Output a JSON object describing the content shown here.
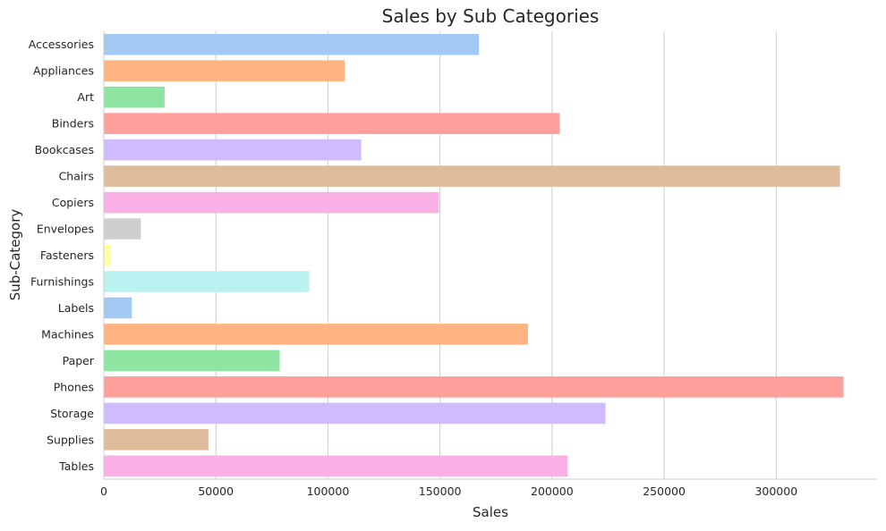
{
  "chart_data": {
    "type": "bar",
    "orientation": "horizontal",
    "title": "Sales by Sub Categories",
    "xlabel": "Sales",
    "ylabel": "Sub-Category",
    "xlim": [
      0,
      345000
    ],
    "x_ticks": [
      0,
      50000,
      100000,
      150000,
      200000,
      250000,
      300000
    ],
    "x_tick_labels": [
      "0",
      "50000",
      "100000",
      "150000",
      "200000",
      "250000",
      "300000"
    ],
    "grid": "vertical",
    "legend": "none",
    "categories": [
      "Accessories",
      "Appliances",
      "Art",
      "Binders",
      "Bookcases",
      "Chairs",
      "Copiers",
      "Envelopes",
      "Fasteners",
      "Furnishings",
      "Labels",
      "Machines",
      "Paper",
      "Phones",
      "Storage",
      "Supplies",
      "Tables"
    ],
    "values": [
      167380,
      107530,
      27119,
      203413,
      114880,
      328449,
      149528,
      16476,
      3024,
      91705,
      12486,
      189239,
      78479,
      330007,
      223844,
      46674,
      206966
    ],
    "colors": [
      "#a1c9f4",
      "#ffb482",
      "#8de5a1",
      "#ff9f9b",
      "#d0bbff",
      "#debb9b",
      "#fab0e4",
      "#cfcfcf",
      "#fffea3",
      "#b9f2f0",
      "#a1c9f4",
      "#ffb482",
      "#8de5a1",
      "#ff9f9b",
      "#d0bbff",
      "#debb9b",
      "#fab0e4"
    ]
  }
}
